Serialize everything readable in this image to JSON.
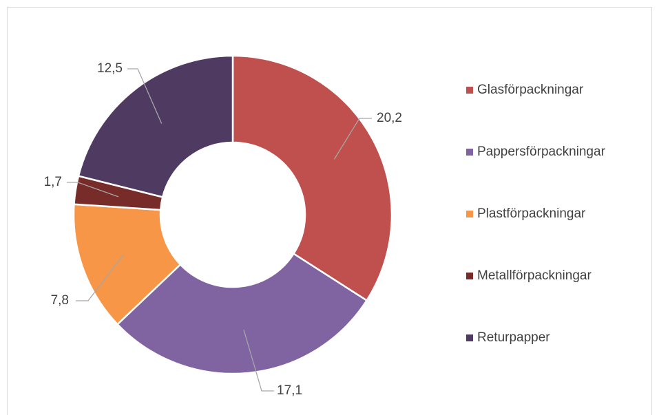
{
  "chart_data": {
    "type": "donut",
    "categories": [
      "Glasförpackningar",
      "Pappersförpackningar",
      "Plastförpackningar",
      "Metallförpackningar",
      "Returpapper"
    ],
    "values": [
      20.2,
      17.1,
      7.8,
      1.7,
      12.5
    ],
    "value_labels": [
      "20,2",
      "17,1",
      "7,8",
      "1,7",
      "12,5"
    ],
    "colors": [
      "#c0504d",
      "#8064a2",
      "#f79646",
      "#772c2a",
      "#4f3b62"
    ],
    "legend": "right"
  }
}
